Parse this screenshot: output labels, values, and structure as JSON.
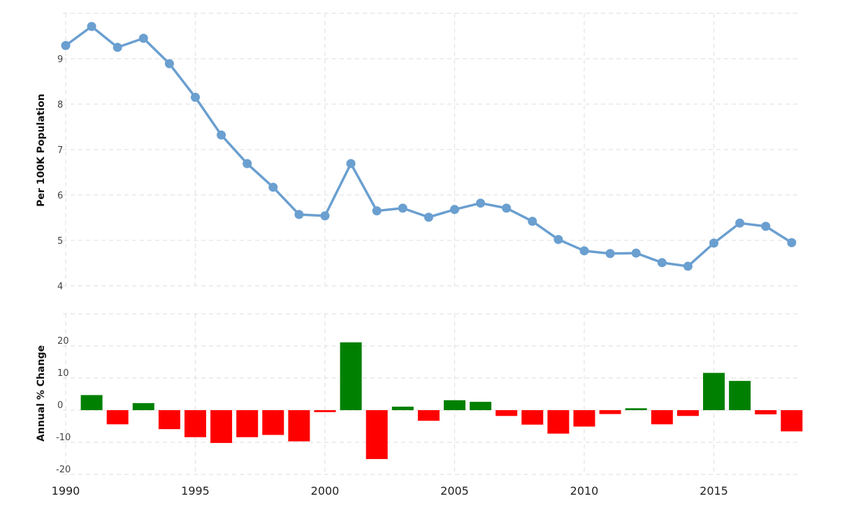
{
  "chart_data": [
    {
      "type": "line",
      "title": "",
      "xlabel": "",
      "ylabel": "Per 100K Population",
      "ylim": [
        4,
        10
      ],
      "yticks": [
        4,
        5,
        6,
        7,
        8,
        9
      ],
      "grid": true,
      "legend": null,
      "color": "#6a9fd0",
      "x": [
        1990,
        1991,
        1992,
        1993,
        1994,
        1995,
        1996,
        1997,
        1998,
        1999,
        2000,
        2001,
        2002,
        2003,
        2004,
        2005,
        2006,
        2007,
        2008,
        2009,
        2010,
        2011,
        2012,
        2013,
        2014,
        2015,
        2016,
        2017,
        2018
      ],
      "values": [
        9.29,
        9.71,
        9.25,
        9.45,
        8.89,
        8.15,
        7.32,
        6.69,
        6.17,
        5.57,
        5.54,
        6.69,
        5.65,
        5.71,
        5.51,
        5.68,
        5.82,
        5.71,
        5.42,
        5.02,
        4.77,
        4.71,
        4.72,
        4.51,
        4.43,
        4.94,
        5.38,
        5.31,
        4.95
      ]
    },
    {
      "type": "bar",
      "title": "",
      "xlabel": "",
      "ylabel": "Annual % Change",
      "ylim": [
        -20,
        30
      ],
      "yticks": [
        -20,
        -10,
        0,
        10,
        20
      ],
      "grid": true,
      "legend": null,
      "positive_color": "#008000",
      "negative_color": "#ff0000",
      "x": [
        1991,
        1992,
        1993,
        1994,
        1995,
        1996,
        1997,
        1998,
        1999,
        2000,
        2001,
        2002,
        2003,
        2004,
        2005,
        2006,
        2007,
        2008,
        2009,
        2010,
        2011,
        2012,
        2013,
        2014,
        2015,
        2016,
        2017,
        2018
      ],
      "values": [
        4.7,
        -4.4,
        2.2,
        -5.9,
        -8.4,
        -10.2,
        -8.4,
        -7.7,
        -9.7,
        -0.6,
        21.1,
        -15.2,
        1.1,
        -3.3,
        3.1,
        2.6,
        -1.8,
        -4.5,
        -7.3,
        -5.1,
        -1.2,
        0.6,
        -4.4,
        -1.8,
        11.6,
        9.1,
        -1.3,
        -6.6
      ]
    }
  ],
  "x_axis": {
    "tick_labels": [
      "1990",
      "1995",
      "2000",
      "2005",
      "2010",
      "2015"
    ],
    "tick_values": [
      1990,
      1995,
      2000,
      2005,
      2010,
      2015
    ],
    "range": [
      1990,
      2018.5
    ]
  },
  "labels": {
    "top_ylabel": "Per 100K Population",
    "bottom_ylabel": "Annual % Change"
  }
}
